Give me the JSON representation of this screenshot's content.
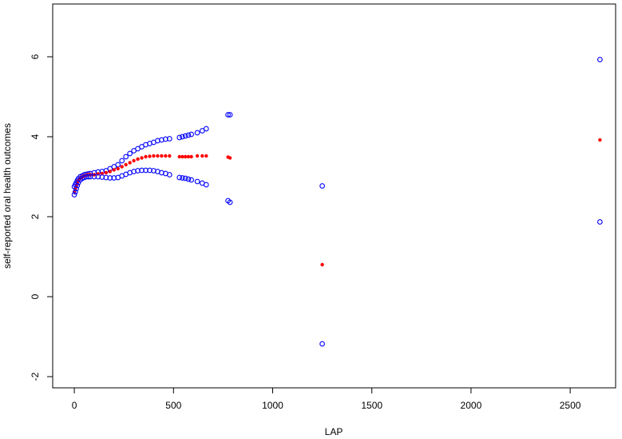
{
  "chart_data": {
    "type": "scatter",
    "x_label": "LAP",
    "y_label": "self-reported oral health outcomes",
    "x": [
      0,
      5,
      10,
      15,
      20,
      30,
      40,
      50,
      60,
      70,
      80,
      100,
      120,
      140,
      160,
      180,
      200,
      220,
      240,
      260,
      280,
      300,
      320,
      340,
      360,
      380,
      400,
      420,
      440,
      460,
      480,
      530,
      545,
      560,
      575,
      590,
      620,
      645,
      665,
      775,
      785,
      1250,
      2650
    ],
    "series": [
      {
        "color": "#0000ff",
        "marker": "open",
        "values": [
          2.75,
          2.8,
          2.85,
          2.9,
          2.95,
          3.0,
          3.02,
          3.05,
          3.06,
          3.07,
          3.08,
          3.1,
          3.12,
          3.13,
          3.15,
          3.2,
          3.25,
          3.3,
          3.4,
          3.5,
          3.58,
          3.65,
          3.7,
          3.75,
          3.8,
          3.83,
          3.86,
          3.9,
          3.92,
          3.94,
          3.95,
          3.98,
          4.0,
          4.02,
          4.04,
          4.06,
          4.1,
          4.15,
          4.2,
          4.55,
          4.55,
          2.77,
          5.93
        ]
      },
      {
        "color": "#ff0000",
        "marker": "filled",
        "values": [
          2.62,
          2.7,
          2.78,
          2.85,
          2.9,
          2.96,
          3.0,
          3.02,
          3.04,
          3.05,
          3.05,
          3.05,
          3.07,
          3.08,
          3.1,
          3.13,
          3.17,
          3.2,
          3.25,
          3.3,
          3.35,
          3.4,
          3.44,
          3.47,
          3.5,
          3.51,
          3.52,
          3.52,
          3.52,
          3.52,
          3.52,
          3.5,
          3.5,
          3.5,
          3.5,
          3.5,
          3.52,
          3.52,
          3.52,
          3.49,
          3.47,
          0.8,
          3.92
        ]
      },
      {
        "color": "#0000ff",
        "marker": "open",
        "values": [
          2.55,
          2.62,
          2.7,
          2.78,
          2.85,
          2.92,
          2.96,
          2.98,
          3.0,
          3.0,
          3.0,
          3.0,
          3.0,
          2.99,
          2.98,
          2.97,
          2.97,
          2.98,
          3.02,
          3.06,
          3.1,
          3.13,
          3.15,
          3.16,
          3.16,
          3.16,
          3.15,
          3.13,
          3.1,
          3.08,
          3.05,
          2.98,
          2.97,
          2.96,
          2.94,
          2.92,
          2.88,
          2.84,
          2.8,
          2.4,
          2.36,
          -1.18,
          1.87
        ]
      }
    ],
    "xlim": [
      -109,
      2729
    ],
    "ylim": [
      -2.28,
      7.32
    ],
    "xticks": [
      0,
      500,
      1000,
      1500,
      2000,
      2500
    ],
    "yticks": [
      -2,
      0,
      2,
      4,
      6
    ]
  }
}
